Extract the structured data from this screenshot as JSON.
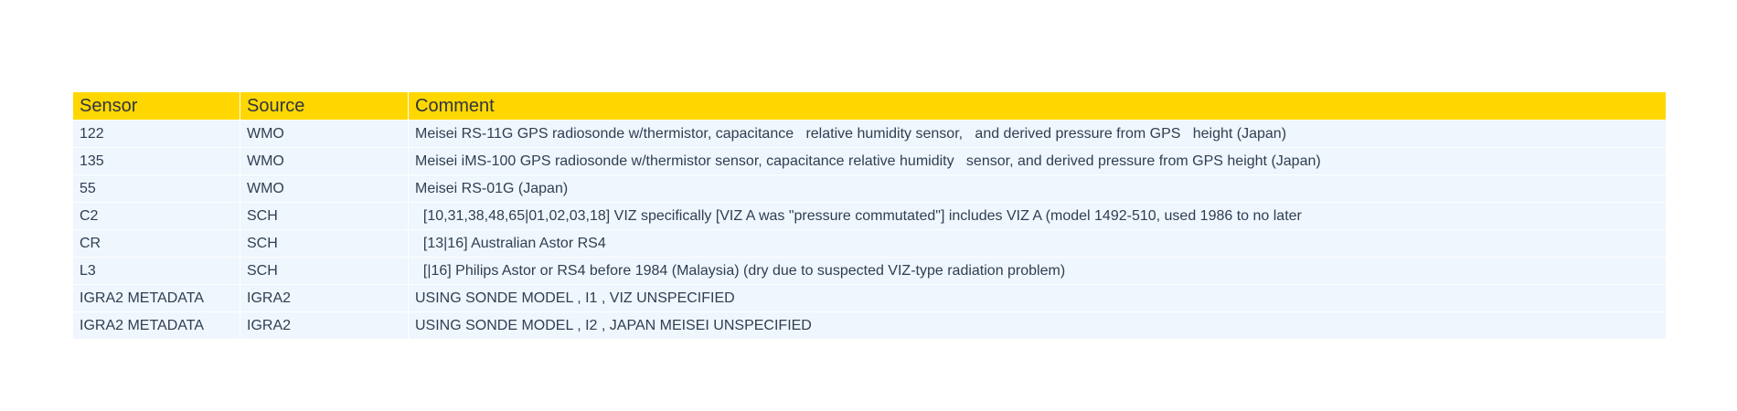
{
  "colors": {
    "header_background": "#FFD700",
    "row_background": "#EFF6FD",
    "text": "#2F3E52"
  },
  "table": {
    "columns": [
      "Sensor",
      "Source",
      "Comment"
    ],
    "rows": [
      [
        "122",
        "WMO",
        "Meisei RS-11G GPS radiosonde w/thermistor, capacitance   relative humidity sensor,   and derived pressure from GPS   height (Japan)"
      ],
      [
        "135",
        "WMO",
        "Meisei iMS-100 GPS radiosonde w/thermistor sensor, capacitance relative humidity   sensor, and derived pressure from GPS height (Japan)"
      ],
      [
        "55",
        "WMO",
        "Meisei RS-01G (Japan)"
      ],
      [
        "C2",
        "SCH",
        "  [10,31,38,48,65|01,02,03,18] VIZ specifically [VIZ A was \"pressure commutated\"] includes VIZ A (model 1492-510, used 1986 to no later"
      ],
      [
        "CR",
        "SCH",
        "  [13|16] Australian Astor RS4"
      ],
      [
        "L3",
        "SCH",
        "  [|16] Philips Astor or RS4 before 1984 (Malaysia) (dry due to suspected VIZ-type radiation problem)"
      ],
      [
        "IGRA2 METADATA",
        "IGRA2",
        "USING SONDE MODEL , I1 , VIZ UNSPECIFIED"
      ],
      [
        "IGRA2 METADATA",
        "IGRA2",
        "USING SONDE MODEL , I2 , JAPAN MEISEI UNSPECIFIED"
      ]
    ]
  }
}
